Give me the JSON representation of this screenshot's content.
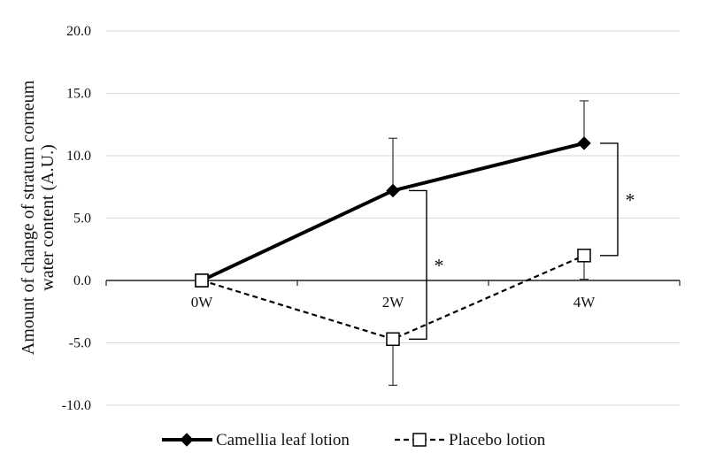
{
  "chart_data": {
    "type": "line",
    "categories": [
      "0W",
      "2W",
      "4W"
    ],
    "ylabel_lines": [
      "Amount of change of stratum corneum",
      "water content (A.U.)"
    ],
    "ylim": [
      -10,
      20
    ],
    "yticks": [
      "20.0",
      "15.0",
      "10.0",
      "5.0",
      "0.0",
      "-5.0",
      "-10.0"
    ],
    "grid": true,
    "legend_position": "bottom",
    "series": [
      {
        "name": "Camellia leaf lotion",
        "values": [
          0.0,
          7.2,
          11.0
        ],
        "error_upper": [
          null,
          11.4,
          14.4
        ],
        "marker": "filled-diamond",
        "line": "solid",
        "color": "#000000"
      },
      {
        "name": "Placebo lotion",
        "values": [
          0.0,
          -4.7,
          2.0
        ],
        "error_lower": [
          null,
          -8.4,
          0.1
        ],
        "marker": "open-square",
        "line": "dashed",
        "color": "#000000"
      }
    ],
    "significance": [
      {
        "category": "2W",
        "label": "*"
      },
      {
        "category": "4W",
        "label": "*"
      }
    ]
  }
}
